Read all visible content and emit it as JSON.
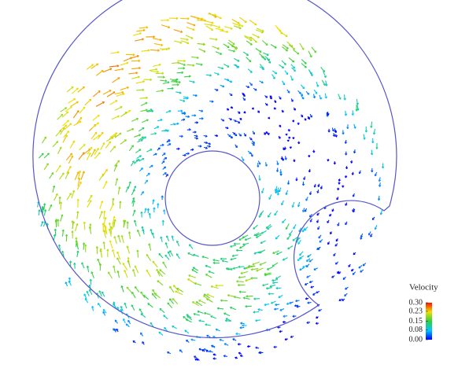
{
  "chart_data": {
    "type": "vector-field",
    "legend_title": "Velocity",
    "clim": [
      0,
      0.3
    ],
    "cticks": [
      {
        "value": 0,
        "label": "0.00"
      },
      0.08,
      0.15,
      0.23,
      {
        "value": 0.3,
        "label": "0.30"
      }
    ]
  }
}
